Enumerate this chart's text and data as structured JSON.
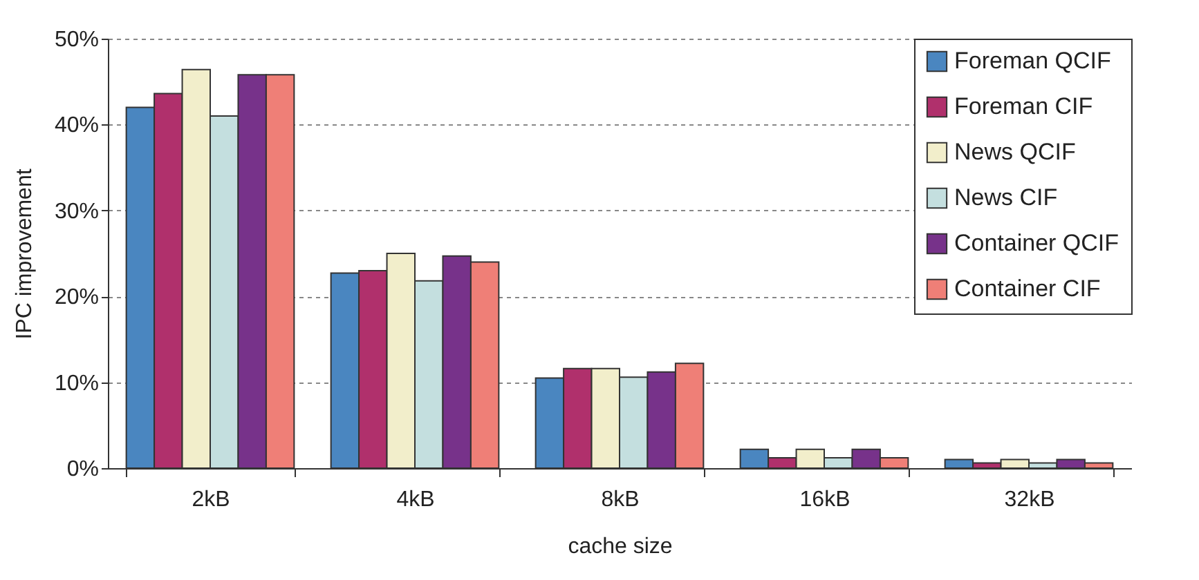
{
  "chart_data": {
    "type": "bar",
    "xlabel": "cache size",
    "ylabel": "IPC improvement",
    "categories": [
      "2kB",
      "4kB",
      "8kB",
      "16kB",
      "32kB"
    ],
    "series": [
      {
        "name": "Foreman QCIF",
        "color": "#4a86c0",
        "values": [
          42.0,
          22.7,
          10.5,
          2.2,
          1.0
        ]
      },
      {
        "name": "Foreman CIF",
        "color": "#b0306c",
        "values": [
          43.6,
          23.0,
          11.6,
          1.2,
          0.6
        ]
      },
      {
        "name": "News QCIF",
        "color": "#f2eecb",
        "values": [
          46.4,
          25.0,
          11.6,
          2.2,
          1.0
        ]
      },
      {
        "name": "News CIF",
        "color": "#c4dfdf",
        "values": [
          41.0,
          21.8,
          10.6,
          1.2,
          0.6
        ]
      },
      {
        "name": "Container QCIF",
        "color": "#77328a",
        "values": [
          45.8,
          24.7,
          11.2,
          2.2,
          1.0
        ]
      },
      {
        "name": "Container CIF",
        "color": "#ef7f77",
        "values": [
          45.8,
          24.0,
          12.2,
          1.2,
          0.6
        ]
      }
    ],
    "ylim": [
      0,
      50
    ],
    "yticks": [
      {
        "value": 0,
        "label": "0%"
      },
      {
        "value": 10,
        "label": "10%"
      },
      {
        "value": 20,
        "label": "20%"
      },
      {
        "value": 30,
        "label": "30%"
      },
      {
        "value": 40,
        "label": "40%"
      },
      {
        "value": 50,
        "label": "50%"
      }
    ],
    "grid": "y",
    "legend": "top right"
  }
}
